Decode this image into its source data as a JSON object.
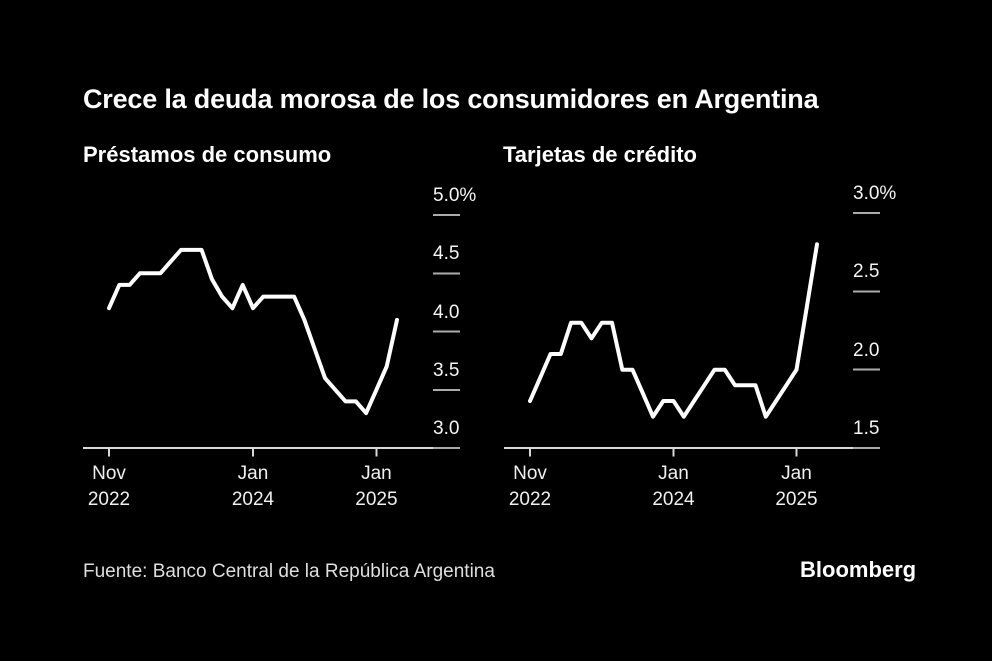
{
  "title": "Crece la deuda morosa de los consumidores en Argentina",
  "source": "Fuente: Banco Central de la República Argentina",
  "brand": "Bloomberg",
  "colors": {
    "background": "#000000",
    "line": "#ffffff",
    "title_text": "#ffffff",
    "tick_label_text": "#f5f5f5",
    "axis": "#d9d9d9",
    "tick_dash": "#ababab"
  },
  "chart_data": [
    {
      "type": "line",
      "title": "Préstamos de consumo",
      "unit": "%",
      "ylim": [
        3.0,
        5.0
      ],
      "months": [
        "Nov 2022",
        "Dec 2022",
        "Jan 2023",
        "Feb 2023",
        "Mar 2023",
        "Apr 2023",
        "May 2023",
        "Jun 2023",
        "Jul 2023",
        "Aug 2023",
        "Sep 2023",
        "Oct 2023",
        "Nov 2023",
        "Dec 2023",
        "Jan 2024",
        "Feb 2024",
        "Mar 2024",
        "Apr 2024",
        "May 2024",
        "Jun 2024",
        "Jul 2024",
        "Aug 2024",
        "Sep 2024",
        "Oct 2024",
        "Nov 2024",
        "Dec 2024",
        "Jan 2025",
        "Feb 2025",
        "Mar 2025"
      ],
      "values": [
        4.2,
        4.4,
        4.4,
        4.5,
        4.5,
        4.5,
        4.6,
        4.7,
        4.7,
        4.7,
        4.45,
        4.3,
        4.2,
        4.4,
        4.2,
        4.3,
        4.3,
        4.3,
        4.3,
        4.1,
        3.85,
        3.6,
        3.5,
        3.4,
        3.4,
        3.3,
        3.5,
        3.7,
        4.1
      ],
      "y_ticks": [
        {
          "value": 5.0,
          "label": "5.0%"
        },
        {
          "value": 4.5,
          "label": "4.5"
        },
        {
          "value": 4.0,
          "label": "4.0"
        },
        {
          "value": 3.5,
          "label": "3.5"
        },
        {
          "value": 3.0,
          "label": "3.0"
        }
      ],
      "x_ticks": [
        {
          "month_index": 0,
          "line1": "Nov",
          "line2": "2022"
        },
        {
          "month_index": 14,
          "line1": "Jan",
          "line2": "2024"
        },
        {
          "month_index": 26,
          "line1": "Jan",
          "line2": "2025"
        }
      ]
    },
    {
      "type": "line",
      "title": "Tarjetas de crédito",
      "unit": "%",
      "ylim": [
        1.5,
        3.0
      ],
      "months": [
        "Nov 2022",
        "Dec 2022",
        "Jan 2023",
        "Feb 2023",
        "Mar 2023",
        "Apr 2023",
        "May 2023",
        "Jun 2023",
        "Jul 2023",
        "Aug 2023",
        "Sep 2023",
        "Oct 2023",
        "Nov 2023",
        "Dec 2023",
        "Jan 2024",
        "Feb 2024",
        "Mar 2024",
        "Apr 2024",
        "May 2024",
        "Jun 2024",
        "Jul 2024",
        "Aug 2024",
        "Sep 2024",
        "Oct 2024",
        "Nov 2024",
        "Dec 2024",
        "Jan 2025",
        "Feb 2025",
        "Mar 2025"
      ],
      "values": [
        1.8,
        1.95,
        2.1,
        2.1,
        2.3,
        2.3,
        2.2,
        2.3,
        2.3,
        2.0,
        2.0,
        1.85,
        1.7,
        1.8,
        1.8,
        1.7,
        1.8,
        1.9,
        2.0,
        2.0,
        1.9,
        1.9,
        1.9,
        1.7,
        1.8,
        1.9,
        2.0,
        2.4,
        2.8
      ],
      "y_ticks": [
        {
          "value": 3.0,
          "label": "3.0%"
        },
        {
          "value": 2.5,
          "label": "2.5"
        },
        {
          "value": 2.0,
          "label": "2.0"
        },
        {
          "value": 1.5,
          "label": "1.5"
        }
      ],
      "x_ticks": [
        {
          "month_index": 0,
          "line1": "Nov",
          "line2": "2022"
        },
        {
          "month_index": 14,
          "line1": "Jan",
          "line2": "2024"
        },
        {
          "month_index": 26,
          "line1": "Jan",
          "line2": "2025"
        }
      ]
    }
  ]
}
